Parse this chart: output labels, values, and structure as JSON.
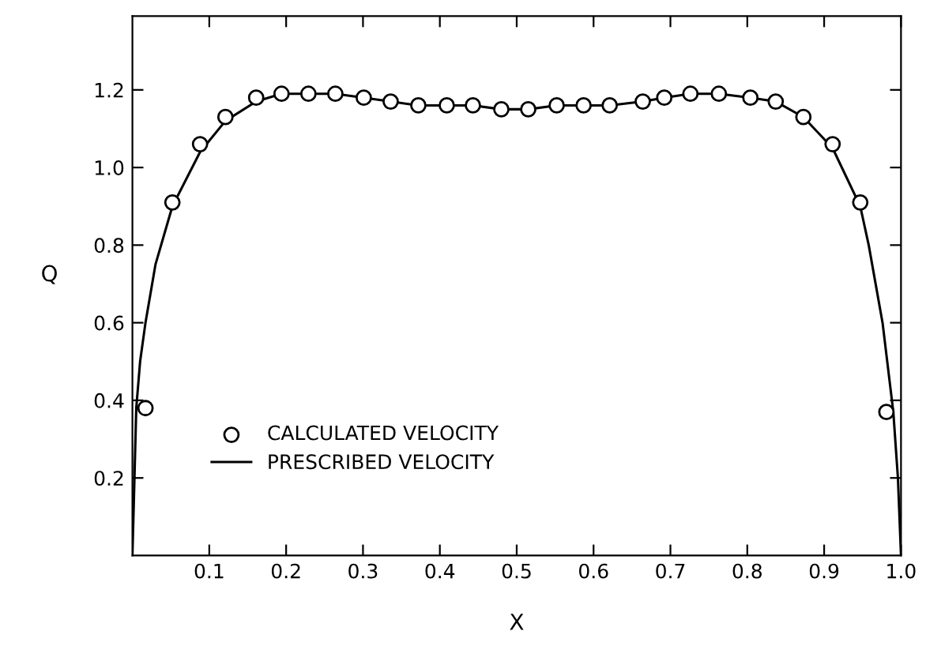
{
  "chart_data": {
    "type": "scatter",
    "xlabel": "X",
    "ylabel": "Q",
    "xlim": [
      0,
      1.0
    ],
    "ylim": [
      0,
      1.39
    ],
    "xticks": [
      0.1,
      0.2,
      0.3,
      0.4,
      0.5,
      0.6,
      0.7,
      0.8,
      0.9,
      {
        "value": 1.0,
        "label": "1.0"
      }
    ],
    "yticks": [
      0.2,
      0.4,
      0.6,
      0.8,
      {
        "value": 1.0,
        "label": "1.0"
      },
      1.2
    ],
    "grid": false,
    "legend": "bottom left",
    "series": [
      {
        "name": "CALCULATED VELOCITY",
        "marker": "circle",
        "color": "#000000",
        "x": [
          0.017,
          0.052,
          0.088,
          0.121,
          0.161,
          0.194,
          0.229,
          0.264,
          0.301,
          0.336,
          0.372,
          0.409,
          0.443,
          0.48,
          0.515,
          0.552,
          0.587,
          0.621,
          0.664,
          0.692,
          0.726,
          0.763,
          0.804,
          0.837,
          0.873,
          0.911,
          0.947,
          0.981
        ],
        "values": [
          0.38,
          0.91,
          1.06,
          1.13,
          1.18,
          1.19,
          1.19,
          1.19,
          1.18,
          1.17,
          1.16,
          1.16,
          1.16,
          1.15,
          1.15,
          1.16,
          1.16,
          1.16,
          1.17,
          1.18,
          1.19,
          1.19,
          1.18,
          1.17,
          1.13,
          1.06,
          0.91,
          0.37
        ]
      },
      {
        "name": "PRESCRIBED VELOCITY",
        "type": "line",
        "marker": "none",
        "line_style": "solid",
        "color": "#000000",
        "x": [
          0.0,
          0.002,
          0.005,
          0.01,
          0.017,
          0.03,
          0.052,
          0.088,
          0.121,
          0.161,
          0.194,
          0.229,
          0.264,
          0.301,
          0.336,
          0.372,
          0.409,
          0.443,
          0.48,
          0.515,
          0.552,
          0.587,
          0.621,
          0.664,
          0.692,
          0.726,
          0.763,
          0.804,
          0.837,
          0.873,
          0.911,
          0.947,
          0.958,
          0.976,
          0.99,
          0.996,
          1.0
        ],
        "values": [
          0.0,
          0.15,
          0.38,
          0.5,
          0.6,
          0.75,
          0.9,
          1.04,
          1.12,
          1.17,
          1.19,
          1.19,
          1.19,
          1.18,
          1.17,
          1.16,
          1.16,
          1.16,
          1.15,
          1.15,
          1.16,
          1.16,
          1.16,
          1.17,
          1.18,
          1.19,
          1.19,
          1.18,
          1.17,
          1.13,
          1.05,
          0.9,
          0.8,
          0.6,
          0.37,
          0.2,
          0.0
        ]
      }
    ]
  }
}
